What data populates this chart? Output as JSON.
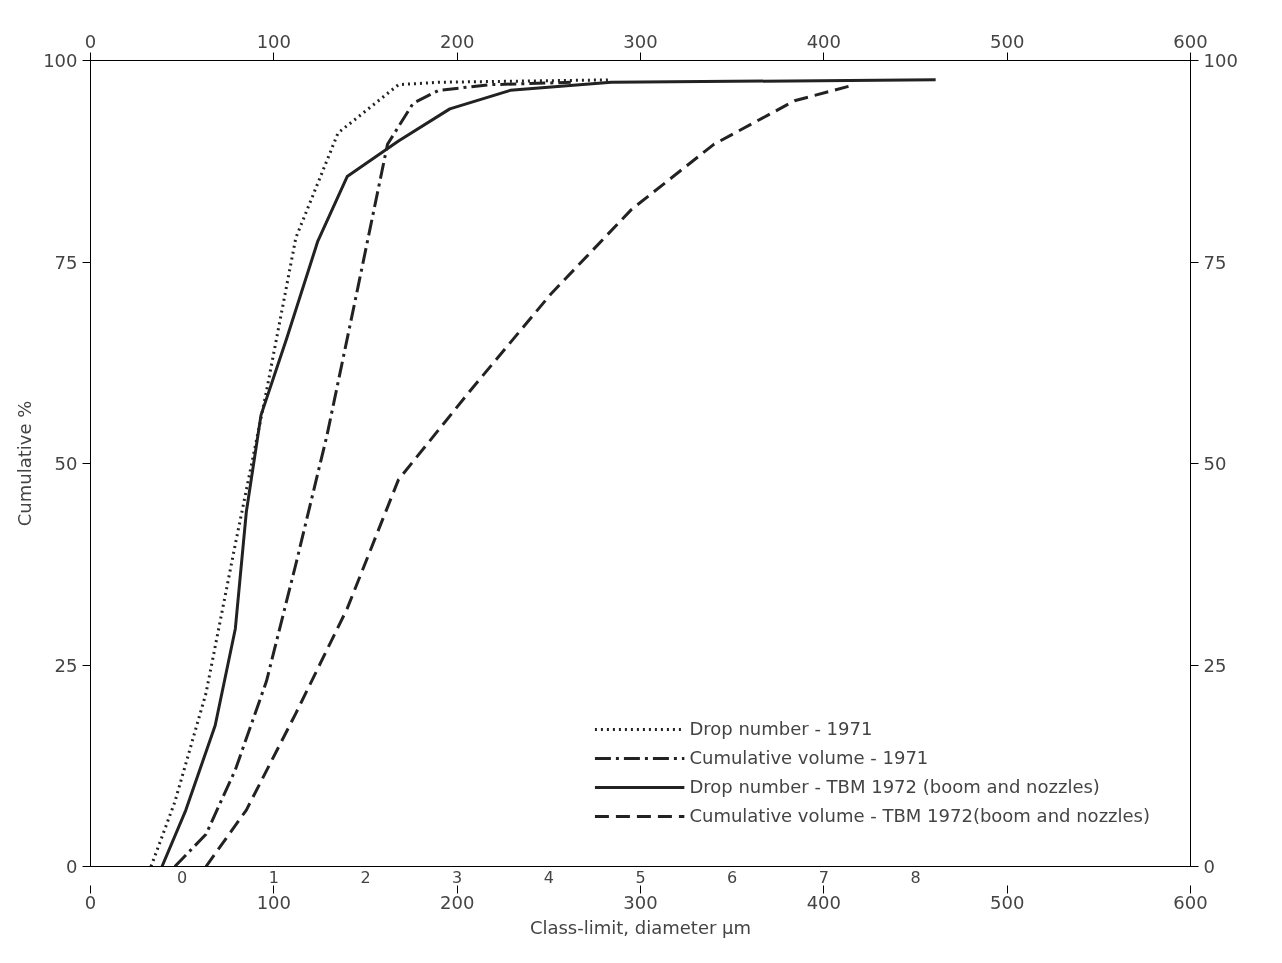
{
  "chart_data": {
    "type": "line",
    "xlabel": "Class-limit, diameter µm",
    "ylabel": "Cumulative %",
    "xlim": [
      0,
      600
    ],
    "xticks": [
      0,
      100,
      200,
      300,
      400,
      500,
      600
    ],
    "annotations": [
      "0",
      "1",
      "2",
      "3",
      "4",
      "5",
      "6",
      "7",
      "8"
    ],
    "x2lim": [
      0,
      600
    ],
    "x2ticks": [
      0,
      100,
      200,
      300,
      400,
      500,
      600
    ],
    "ylim": [
      0,
      100
    ],
    "yticks": [
      0,
      25,
      50,
      75,
      100
    ],
    "y2lim": [
      0,
      100
    ],
    "y2ticks": [
      0,
      25,
      50,
      75,
      100
    ],
    "grid": false,
    "legend": "bottom right",
    "marker": "none",
    "series": [
      {
        "name": "Drop number - 1971",
        "color": "#222222",
        "line_style": "dotted",
        "x": [
          33,
          46,
          63,
          79,
          96,
          112,
          135,
          168,
          190,
          284
        ],
        "values": [
          0,
          8,
          21.5,
          40,
          59,
          78,
          91,
          97,
          97.3,
          97.6
        ]
      },
      {
        "name": "Cumulative volume - 1971",
        "color": "#222222",
        "line_style": "dashdot",
        "x": [
          46,
          63,
          79,
          96,
          112,
          129,
          146,
          162,
          176,
          190,
          218,
          262
        ],
        "values": [
          0,
          4,
          12,
          23,
          37.5,
          53.5,
          72,
          89.6,
          94.7,
          96.3,
          97,
          97.3
        ]
      },
      {
        "name": "Drop number - TBM 1972 (boom and nozzles)",
        "color": "#222222",
        "line_style": "solid",
        "x": [
          39,
          52,
          68,
          79,
          85,
          93,
          107,
          124,
          140,
          168,
          196,
          229,
          284,
          461
        ],
        "values": [
          0,
          7,
          17.5,
          29.5,
          44,
          56,
          65.5,
          77.6,
          85.6,
          90,
          94,
          96.3,
          97.3,
          97.6
        ]
      },
      {
        "name": "Cumulative volume - TBM 1972(boom and nozzles)",
        "color": "#222222",
        "line_style": "dashed",
        "x": [
          63,
          85,
          112,
          140,
          168,
          207,
          251,
          295,
          340,
          384,
          417
        ],
        "values": [
          0,
          7,
          19,
          32,
          48,
          59,
          71,
          81.5,
          89.6,
          95,
          97
        ]
      }
    ]
  }
}
